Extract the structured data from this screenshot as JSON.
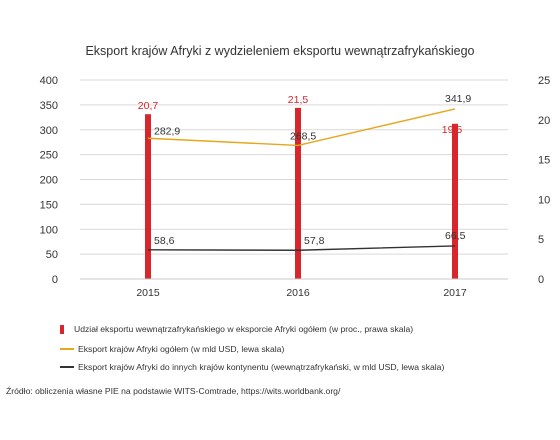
{
  "chart_data": {
    "type": "bar",
    "title": "Eksport krajów Afryki z wydzieleniem eksportu wewnątrzafrykańskiego",
    "categories": [
      "2015",
      "2016",
      "2017"
    ],
    "left_axis": {
      "ticks": [
        "0",
        "50",
        "100",
        "150",
        "200",
        "250",
        "300",
        "350",
        "400"
      ],
      "ylim": [
        0,
        400
      ]
    },
    "right_axis": {
      "ticks": [
        "0",
        "5",
        "10",
        "15",
        "20",
        "25"
      ],
      "ylim": [
        0,
        25
      ]
    },
    "series": [
      {
        "name": "Udział eksportu wewnątrzafrykańskiego w eksporcie Afryki ogółem (w proc., prawa skala)",
        "type": "bar",
        "axis": "right",
        "color": "#d7262c",
        "values": [
          20.7,
          21.5,
          19.5
        ],
        "labels": [
          "20,7",
          "21,5",
          "19,5"
        ]
      },
      {
        "name": "Eksport krajów Afryki ogółem (w mld USD, lewa skala)",
        "type": "line",
        "axis": "left",
        "color": "#e8a61c",
        "values": [
          282.9,
          268.5,
          341.9
        ],
        "labels": [
          "282,9",
          "268,5",
          "341,9"
        ]
      },
      {
        "name": "Eksport krajów Afryki do innych krajów kontynentu (wewnątrzafrykański, w mld USD, lewa skala)",
        "type": "line",
        "axis": "left",
        "color": "#333333",
        "values": [
          58.6,
          57.8,
          66.5
        ],
        "labels": [
          "58,6",
          "57,8",
          "66,5"
        ]
      }
    ],
    "grid": "horizontal",
    "legend_position": "bottom"
  },
  "source": "Źródło: obliczenia własne PIE na podstawie WITS-Comtrade, https://wits.worldbank.org/"
}
